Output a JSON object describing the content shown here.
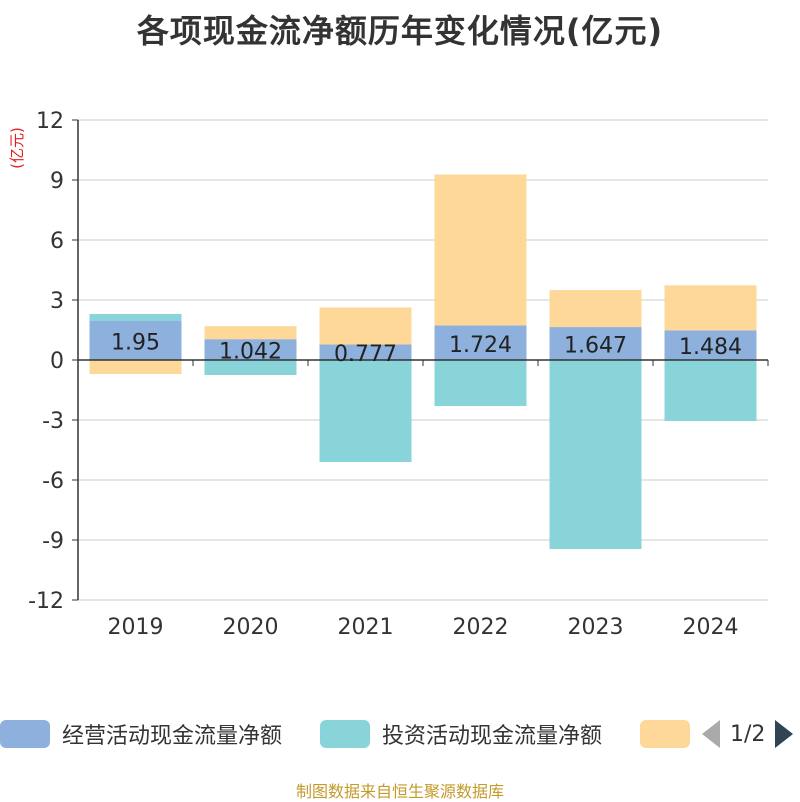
{
  "chart_data": {
    "type": "bar",
    "stacked": true,
    "title": "各项现金流净额历年变化情况(亿元)",
    "ylabel": "(亿元)",
    "xlabel": "",
    "ylim": [
      -12,
      12
    ],
    "yticks": [
      12,
      9,
      6,
      3,
      0,
      -3,
      -6,
      -9,
      -12
    ],
    "categories": [
      "2019",
      "2020",
      "2021",
      "2022",
      "2023",
      "2024"
    ],
    "series": [
      {
        "name": "经营活动现金流量净额",
        "color": "#8eb0dc",
        "values": [
          1.95,
          1.042,
          0.777,
          1.724,
          1.647,
          1.484
        ],
        "labels": [
          "1.95",
          "1.042",
          "0.777",
          "1.724",
          "1.647",
          "1.484"
        ]
      },
      {
        "name": "投资活动现金流量净额",
        "color": "#88d4d8",
        "values": [
          0.35,
          -0.75,
          -5.1,
          -2.3,
          -9.45,
          -3.05
        ]
      },
      {
        "name": "",
        "color": "#fdd899",
        "values": [
          -0.7,
          0.65,
          1.85,
          7.55,
          1.85,
          2.25
        ]
      }
    ]
  },
  "legend": {
    "items": [
      {
        "label": "经营活动现金流量净额"
      },
      {
        "label": "投资活动现金流量净额"
      },
      {
        "label": ""
      }
    ],
    "page": "1/2"
  },
  "source": "制图数据来自恒生聚源数据库"
}
